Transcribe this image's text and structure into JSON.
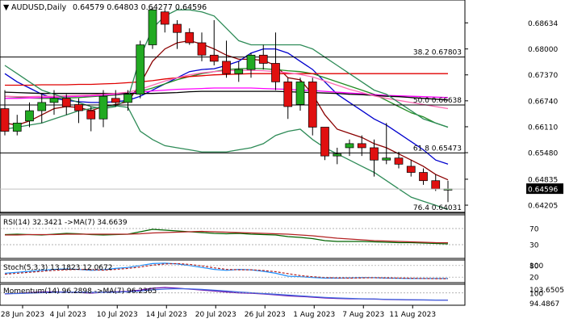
{
  "header": {
    "symbol": "AUDUSD,Daily",
    "ohlc": "0.64579 0.64803 0.64277 0.64596"
  },
  "indicators": {
    "rsi": {
      "label": "RSI(14) 32.3421 ->MA(7) 34.6639"
    },
    "stoch": {
      "label": "Stoch(5,3,3) 13.1823 12.0672"
    },
    "momentum": {
      "label": "Momentum(14) 96.2898 ->MA(7) 96.2365"
    }
  },
  "chart_data": {
    "type": "candlestick",
    "price_axis": {
      "ticks": [
        "0.68634",
        "0.68000",
        "0.67370",
        "0.66740",
        "0.66110",
        "0.65480",
        "0.64835",
        "0.64205"
      ],
      "current": "0.64596"
    },
    "x_axis_labels": [
      "28 Jun 2023",
      "4 Jul 2023",
      "10 Jul 2023",
      "14 Jul 2023",
      "20 Jul 2023",
      "26 Jul 2023",
      "1 Aug 2023",
      "7 Aug 2023",
      "11 Aug 2023"
    ],
    "fib_levels": [
      {
        "label": "38.2 0.67803",
        "value": 0.67803
      },
      {
        "label": "50.0 0.66638",
        "value": 0.66638
      },
      {
        "label": "61.8 0.65473",
        "value": 0.65473
      },
      {
        "label": "76.4 0.64031",
        "value": 0.64031
      }
    ],
    "candles": [
      {
        "date": "2023-06-27",
        "o": 0.6655,
        "h": 0.67,
        "l": 0.659,
        "c": 0.66
      },
      {
        "date": "2023-06-28",
        "o": 0.66,
        "h": 0.664,
        "l": 0.659,
        "c": 0.662
      },
      {
        "date": "2023-06-29",
        "o": 0.6625,
        "h": 0.667,
        "l": 0.661,
        "c": 0.665
      },
      {
        "date": "2023-06-30",
        "o": 0.665,
        "h": 0.669,
        "l": 0.662,
        "c": 0.667
      },
      {
        "date": "2023-07-03",
        "o": 0.667,
        "h": 0.67,
        "l": 0.664,
        "c": 0.668
      },
      {
        "date": "2023-07-04",
        "o": 0.668,
        "h": 0.669,
        "l": 0.664,
        "c": 0.666
      },
      {
        "date": "2023-07-05",
        "o": 0.6665,
        "h": 0.668,
        "l": 0.662,
        "c": 0.665
      },
      {
        "date": "2023-07-06",
        "o": 0.665,
        "h": 0.666,
        "l": 0.66,
        "c": 0.663
      },
      {
        "date": "2023-07-07",
        "o": 0.663,
        "h": 0.67,
        "l": 0.661,
        "c": 0.6685
      },
      {
        "date": "2023-07-10",
        "o": 0.668,
        "h": 0.67,
        "l": 0.666,
        "c": 0.667
      },
      {
        "date": "2023-07-11",
        "o": 0.667,
        "h": 0.67,
        "l": 0.665,
        "c": 0.669
      },
      {
        "date": "2023-07-12",
        "o": 0.669,
        "h": 0.682,
        "l": 0.668,
        "c": 0.681
      },
      {
        "date": "2023-07-13",
        "o": 0.681,
        "h": 0.69,
        "l": 0.68,
        "c": 0.6895
      },
      {
        "date": "2023-07-14",
        "o": 0.689,
        "h": 0.6895,
        "l": 0.684,
        "c": 0.686
      },
      {
        "date": "2023-07-17",
        "o": 0.686,
        "h": 0.687,
        "l": 0.68,
        "c": 0.684
      },
      {
        "date": "2023-07-18",
        "o": 0.684,
        "h": 0.685,
        "l": 0.681,
        "c": 0.6815
      },
      {
        "date": "2023-07-19",
        "o": 0.6815,
        "h": 0.684,
        "l": 0.677,
        "c": 0.6785
      },
      {
        "date": "2023-07-20",
        "o": 0.6785,
        "h": 0.687,
        "l": 0.676,
        "c": 0.677
      },
      {
        "date": "2023-07-21",
        "o": 0.677,
        "h": 0.682,
        "l": 0.673,
        "c": 0.674
      },
      {
        "date": "2023-07-24",
        "o": 0.674,
        "h": 0.677,
        "l": 0.672,
        "c": 0.675
      },
      {
        "date": "2023-07-25",
        "o": 0.675,
        "h": 0.679,
        "l": 0.673,
        "c": 0.6785
      },
      {
        "date": "2023-07-26",
        "o": 0.6785,
        "h": 0.681,
        "l": 0.675,
        "c": 0.6765
      },
      {
        "date": "2023-07-27",
        "o": 0.6765,
        "h": 0.684,
        "l": 0.67,
        "c": 0.672
      },
      {
        "date": "2023-07-28",
        "o": 0.672,
        "h": 0.673,
        "l": 0.663,
        "c": 0.666
      },
      {
        "date": "2023-07-31",
        "o": 0.6665,
        "h": 0.673,
        "l": 0.665,
        "c": 0.672
      },
      {
        "date": "2023-08-01",
        "o": 0.672,
        "h": 0.673,
        "l": 0.659,
        "c": 0.661
      },
      {
        "date": "2023-08-02",
        "o": 0.661,
        "h": 0.661,
        "l": 0.653,
        "c": 0.654
      },
      {
        "date": "2023-08-03",
        "o": 0.654,
        "h": 0.656,
        "l": 0.652,
        "c": 0.6545
      },
      {
        "date": "2023-08-04",
        "o": 0.656,
        "h": 0.658,
        "l": 0.654,
        "c": 0.657
      },
      {
        "date": "2023-08-07",
        "o": 0.657,
        "h": 0.659,
        "l": 0.654,
        "c": 0.656
      },
      {
        "date": "2023-08-08",
        "o": 0.656,
        "h": 0.658,
        "l": 0.649,
        "c": 0.653
      },
      {
        "date": "2023-08-09",
        "o": 0.653,
        "h": 0.662,
        "l": 0.652,
        "c": 0.6535
      },
      {
        "date": "2023-08-10",
        "o": 0.6535,
        "h": 0.655,
        "l": 0.651,
        "c": 0.652
      },
      {
        "date": "2023-08-11",
        "o": 0.6515,
        "h": 0.653,
        "l": 0.649,
        "c": 0.65
      },
      {
        "date": "2023-08-14",
        "o": 0.65,
        "h": 0.651,
        "l": 0.647,
        "c": 0.648
      },
      {
        "date": "2023-08-15",
        "o": 0.648,
        "h": 0.6495,
        "l": 0.6455,
        "c": 0.646
      },
      {
        "date": "2023-08-16",
        "o": 0.6458,
        "h": 0.648,
        "l": 0.6428,
        "c": 0.646
      }
    ],
    "overlays": [
      {
        "color": "#8b0000",
        "values": [
          0.662,
          0.6615,
          0.6625,
          0.664,
          0.6655,
          0.666,
          0.6658,
          0.665,
          0.666,
          0.6665,
          0.6672,
          0.6715,
          0.677,
          0.68,
          0.6815,
          0.682,
          0.6812,
          0.68,
          0.6785,
          0.6775,
          0.6775,
          0.6772,
          0.676,
          0.673,
          0.6725,
          0.669,
          0.664,
          0.6605,
          0.6595,
          0.6585,
          0.657,
          0.656,
          0.6545,
          0.653,
          0.6515,
          0.6495,
          0.6482
        ]
      },
      {
        "color": "#0000cd",
        "values": [
          0.674,
          0.672,
          0.6705,
          0.669,
          0.668,
          0.6675,
          0.6672,
          0.667,
          0.667,
          0.6672,
          0.6675,
          0.6685,
          0.67,
          0.6715,
          0.673,
          0.6745,
          0.675,
          0.6752,
          0.676,
          0.677,
          0.679,
          0.68,
          0.68,
          0.679,
          0.677,
          0.675,
          0.672,
          0.669,
          0.667,
          0.665,
          0.663,
          0.6615,
          0.6595,
          0.6575,
          0.6555,
          0.653,
          0.652
        ]
      },
      {
        "color": "#228b22",
        "values": [
          0.6685,
          0.6683,
          0.6681,
          0.668,
          0.668,
          0.6681,
          0.6682,
          0.6684,
          0.6686,
          0.6688,
          0.6691,
          0.6697,
          0.6705,
          0.6715,
          0.6725,
          0.6733,
          0.674,
          0.6745,
          0.675,
          0.6752,
          0.6753,
          0.6752,
          0.675,
          0.6747,
          0.6745,
          0.674,
          0.673,
          0.672,
          0.671,
          0.67,
          0.669,
          0.6675,
          0.666,
          0.6645,
          0.6635,
          0.662,
          0.661
        ]
      },
      {
        "color": "#e00000",
        "values": [
          0.6712,
          0.6712,
          0.6712,
          0.6713,
          0.6713,
          0.6713,
          0.6714,
          0.6714,
          0.6715,
          0.6716,
          0.6718,
          0.672,
          0.6723,
          0.6727,
          0.673,
          0.6733,
          0.6735,
          0.6737,
          0.6738,
          0.6739,
          0.674,
          0.674,
          0.674,
          0.674,
          0.674,
          0.674,
          0.674,
          0.674,
          0.674,
          0.674,
          0.674,
          0.674,
          0.674,
          0.674,
          0.674,
          0.674,
          0.674
        ]
      },
      {
        "color": "#ff00ff",
        "values": [
          0.668,
          0.668,
          0.6681,
          0.6682,
          0.6683,
          0.6684,
          0.6685,
          0.6686,
          0.6688,
          0.669,
          0.6692,
          0.6695,
          0.6698,
          0.67,
          0.6702,
          0.6703,
          0.6704,
          0.6705,
          0.6705,
          0.6705,
          0.6705,
          0.6704,
          0.6703,
          0.6702,
          0.67,
          0.6699,
          0.6697,
          0.6695,
          0.6693,
          0.6691,
          0.6689,
          0.6687,
          0.6686,
          0.6685,
          0.6684,
          0.6683,
          0.6682
        ]
      },
      {
        "color": "#000000",
        "values": [
          0.6695,
          0.6694,
          0.6693,
          0.6692,
          0.6692,
          0.6692,
          0.6692,
          0.6692,
          0.6692,
          0.6692,
          0.6692,
          0.6692,
          0.6692,
          0.6693,
          0.6694,
          0.6696,
          0.6697,
          0.6697,
          0.6697,
          0.6697,
          0.6697,
          0.6697,
          0.6697,
          0.6696,
          0.6695,
          0.6694,
          0.6693,
          0.6692,
          0.669,
          0.6689,
          0.6687,
          0.6685,
          0.6684,
          0.6682,
          0.668,
          0.6678,
          0.6676
        ]
      },
      {
        "color": "#ff69b4",
        "values": [
          0.6685,
          0.6684,
          0.6684,
          0.6685,
          0.6685,
          0.6686,
          0.6687,
          0.6688,
          0.669,
          0.6692,
          0.6695,
          0.6702,
          0.6712,
          0.6722,
          0.673,
          0.6737,
          0.6742,
          0.6745,
          0.6747,
          0.6748,
          0.6748,
          0.6747,
          0.6745,
          0.6742,
          0.6738,
          0.6732,
          0.6722,
          0.6712,
          0.6702,
          0.6694,
          0.6686,
          0.668,
          0.6675,
          0.667,
          0.6665,
          0.666,
          0.6655
        ]
      },
      {
        "color": "#2e8b57",
        "values": [
          0.676,
          0.674,
          0.672,
          0.67,
          0.669,
          0.668,
          0.667,
          0.666,
          0.6655,
          0.666,
          0.668,
          0.678,
          0.685,
          0.688,
          0.6895,
          0.6895,
          0.689,
          0.688,
          0.685,
          0.682,
          0.681,
          0.681,
          0.681,
          0.681,
          0.681,
          0.68,
          0.678,
          0.676,
          0.674,
          0.672,
          0.67,
          0.669,
          0.667,
          0.665,
          0.663,
          0.662,
          0.661
        ]
      },
      {
        "color": "#2e8b57",
        "values": [
          0.6605,
          0.661,
          0.6615,
          0.662,
          0.663,
          0.664,
          0.665,
          0.6655,
          0.666,
          0.6662,
          0.6658,
          0.66,
          0.658,
          0.6565,
          0.656,
          0.6555,
          0.655,
          0.655,
          0.655,
          0.6555,
          0.656,
          0.657,
          0.659,
          0.66,
          0.6605,
          0.658,
          0.656,
          0.6545,
          0.653,
          0.6515,
          0.65,
          0.648,
          0.646,
          0.644,
          0.643,
          0.642,
          0.641
        ]
      }
    ],
    "rsi_axis": [
      "70",
      "30"
    ],
    "rsi": [
      55,
      56,
      55,
      54,
      56,
      58,
      57,
      55,
      54,
      55,
      56,
      62,
      68,
      66,
      64,
      62,
      60,
      58,
      57,
      58,
      56,
      55,
      54,
      50,
      48,
      45,
      40,
      38,
      38,
      38,
      37,
      36,
      35,
      35,
      34,
      33,
      32
    ],
    "rsi_ma": [
      54,
      54,
      55,
      55,
      55,
      56,
      56,
      56,
      56,
      56,
      56,
      57,
      59,
      60,
      61,
      62,
      63,
      62,
      61,
      60,
      59,
      58,
      57,
      56,
      54,
      52,
      49,
      46,
      44,
      42,
      40,
      39,
      38,
      37,
      36,
      35,
      34.7
    ],
    "stoch_axis": [
      "100",
      "80",
      "20"
    ],
    "stoch_k": [
      40,
      45,
      50,
      55,
      60,
      62,
      60,
      55,
      58,
      65,
      70,
      80,
      90,
      92,
      88,
      80,
      70,
      60,
      55,
      60,
      58,
      50,
      40,
      25,
      22,
      18,
      15,
      15,
      16,
      18,
      17,
      15,
      14,
      13,
      13,
      13,
      13
    ],
    "stoch_d": [
      35,
      40,
      45,
      50,
      55,
      58,
      60,
      58,
      56,
      60,
      65,
      72,
      82,
      88,
      90,
      86,
      78,
      68,
      60,
      58,
      58,
      54,
      48,
      38,
      28,
      22,
      18,
      16,
      15,
      16,
      17,
      16,
      15,
      14,
      13,
      12,
      12
    ],
    "mom_axis": [
      "103.6505",
      "100",
      "94.4867"
    ],
    "momentum": [
      99.5,
      99.8,
      100.2,
      100.5,
      100.6,
      100.4,
      100.2,
      99.9,
      100.3,
      100.6,
      100.8,
      101.5,
      102.4,
      102.8,
      102.5,
      102.0,
      101.5,
      101.0,
      100.5,
      100.0,
      99.8,
      99.5,
      99.0,
      98.5,
      98.2,
      97.8,
      97.4,
      97.1,
      97.0,
      96.9,
      96.8,
      96.6,
      96.5,
      96.4,
      96.35,
      96.3,
      96.29
    ],
    "momentum_ma": [
      99.6,
      99.7,
      99.9,
      100.1,
      100.3,
      100.4,
      100.4,
      100.3,
      100.3,
      100.4,
      100.6,
      101.0,
      101.6,
      102.0,
      102.2,
      102.1,
      101.8,
      101.4,
      101.0,
      100.5,
      100.1,
      99.7,
      99.3,
      98.9,
      98.5,
      98.1,
      97.7,
      97.4,
      97.2,
      97.0,
      96.9,
      96.7,
      96.6,
      96.5,
      96.4,
      96.3,
      96.24
    ]
  }
}
